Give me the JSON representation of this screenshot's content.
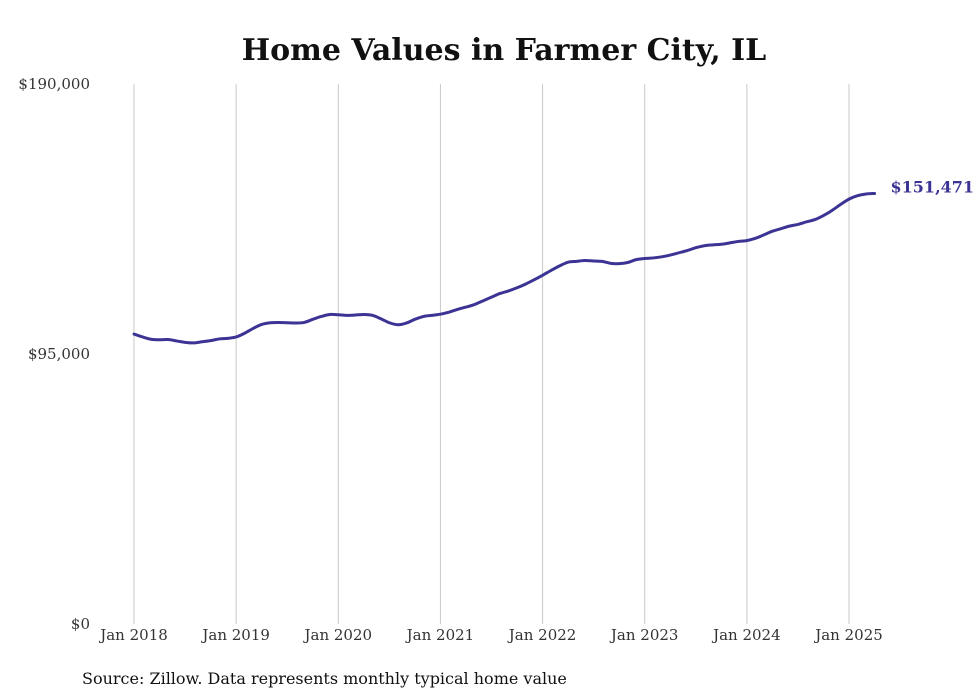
{
  "chart_data": {
    "type": "line",
    "title": "Home Values in Farmer City, IL",
    "source_note": "Source: Zillow. Data represents monthly typical home value",
    "ylim": [
      0,
      190000
    ],
    "yticks": [
      {
        "value": 190000,
        "label": "$190,000"
      },
      {
        "value": 95000,
        "label": "$95,000"
      },
      {
        "value": 0,
        "label": "$0"
      }
    ],
    "xticks": [
      {
        "date": "2018-01",
        "label": "Jan 2018"
      },
      {
        "date": "2019-01",
        "label": "Jan 2019"
      },
      {
        "date": "2020-01",
        "label": "Jan 2020"
      },
      {
        "date": "2021-01",
        "label": "Jan 2021"
      },
      {
        "date": "2022-01",
        "label": "Jan 2022"
      },
      {
        "date": "2023-01",
        "label": "Jan 2023"
      },
      {
        "date": "2024-01",
        "label": "Jan 2024"
      },
      {
        "date": "2025-01",
        "label": "Jan 2025"
      }
    ],
    "xlim": [
      "2018-01",
      "2025-03"
    ],
    "grid": {
      "vertical": true,
      "horizontal": false
    },
    "line_color": "#3b3494",
    "end_label": "$151,471",
    "series": [
      {
        "points": [
          [
            "2018-01",
            102000
          ],
          [
            "2018-02",
            101000
          ],
          [
            "2018-03",
            100200
          ],
          [
            "2018-04",
            100000
          ],
          [
            "2018-05",
            100100
          ],
          [
            "2018-06",
            99600
          ],
          [
            "2018-07",
            99100
          ],
          [
            "2018-08",
            98900
          ],
          [
            "2018-09",
            99300
          ],
          [
            "2018-10",
            99700
          ],
          [
            "2018-11",
            100300
          ],
          [
            "2018-12",
            100500
          ],
          [
            "2019-01",
            101000
          ],
          [
            "2019-02",
            102300
          ],
          [
            "2019-03",
            104000
          ],
          [
            "2019-04",
            105400
          ],
          [
            "2019-05",
            106000
          ],
          [
            "2019-06",
            106100
          ],
          [
            "2019-07",
            106000
          ],
          [
            "2019-08",
            105900
          ],
          [
            "2019-09",
            106100
          ],
          [
            "2019-10",
            107200
          ],
          [
            "2019-11",
            108200
          ],
          [
            "2019-12",
            108900
          ],
          [
            "2020-01",
            108800
          ],
          [
            "2020-02",
            108600
          ],
          [
            "2020-03",
            108700
          ],
          [
            "2020-04",
            108900
          ],
          [
            "2020-05",
            108600
          ],
          [
            "2020-06",
            107400
          ],
          [
            "2020-07",
            106000
          ],
          [
            "2020-08",
            105300
          ],
          [
            "2020-09",
            105900
          ],
          [
            "2020-10",
            107200
          ],
          [
            "2020-11",
            108200
          ],
          [
            "2020-12",
            108600
          ],
          [
            "2021-01",
            109000
          ],
          [
            "2021-02",
            109700
          ],
          [
            "2021-03",
            110700
          ],
          [
            "2021-04",
            111500
          ],
          [
            "2021-05",
            112400
          ],
          [
            "2021-06",
            113700
          ],
          [
            "2021-07",
            115000
          ],
          [
            "2021-08",
            116300
          ],
          [
            "2021-09",
            117200
          ],
          [
            "2021-10",
            118300
          ],
          [
            "2021-11",
            119600
          ],
          [
            "2021-12",
            121100
          ],
          [
            "2022-01",
            122700
          ],
          [
            "2022-02",
            124400
          ],
          [
            "2022-03",
            126000
          ],
          [
            "2022-04",
            127300
          ],
          [
            "2022-05",
            127600
          ],
          [
            "2022-06",
            127900
          ],
          [
            "2022-07",
            127700
          ],
          [
            "2022-08",
            127600
          ],
          [
            "2022-09",
            126900
          ],
          [
            "2022-10",
            126800
          ],
          [
            "2022-11",
            127200
          ],
          [
            "2022-12",
            128200
          ],
          [
            "2023-01",
            128600
          ],
          [
            "2023-02",
            128800
          ],
          [
            "2023-03",
            129200
          ],
          [
            "2023-04",
            129800
          ],
          [
            "2023-05",
            130600
          ],
          [
            "2023-06",
            131400
          ],
          [
            "2023-07",
            132400
          ],
          [
            "2023-08",
            133100
          ],
          [
            "2023-09",
            133400
          ],
          [
            "2023-10",
            133600
          ],
          [
            "2023-11",
            134100
          ],
          [
            "2023-12",
            134600
          ],
          [
            "2024-01",
            134900
          ],
          [
            "2024-02",
            135700
          ],
          [
            "2024-03",
            136900
          ],
          [
            "2024-04",
            138200
          ],
          [
            "2024-05",
            139100
          ],
          [
            "2024-06",
            140000
          ],
          [
            "2024-07",
            140600
          ],
          [
            "2024-08",
            141500
          ],
          [
            "2024-09",
            142300
          ],
          [
            "2024-10",
            143700
          ],
          [
            "2024-11",
            145500
          ],
          [
            "2024-12",
            147600
          ],
          [
            "2025-01",
            149500
          ],
          [
            "2025-02",
            150700
          ],
          [
            "2025-03",
            151300
          ],
          [
            "2025-04",
            151471
          ]
        ]
      }
    ]
  }
}
